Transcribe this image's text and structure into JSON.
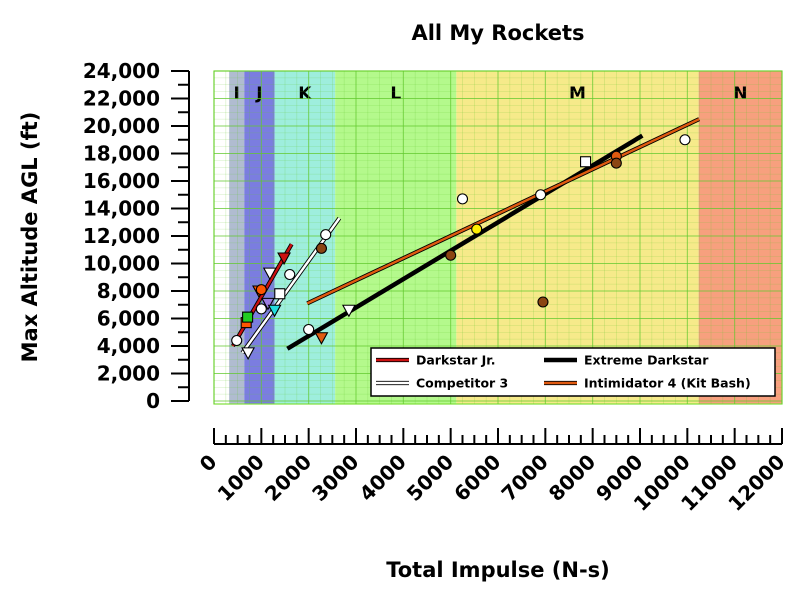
{
  "chart_data": {
    "type": "scatter",
    "title": "All My Rockets",
    "xlabel": "Total Impulse (N-s)",
    "ylabel": "Max Altitude AGL (ft)",
    "xlim": [
      0,
      12000
    ],
    "ylim": [
      0,
      24000
    ],
    "x_ticks": [
      0,
      1000,
      2000,
      3000,
      4000,
      5000,
      6000,
      7000,
      8000,
      9000,
      10000,
      11000,
      12000
    ],
    "y_ticks": [
      0,
      2000,
      4000,
      6000,
      8000,
      10000,
      12000,
      14000,
      16000,
      18000,
      20000,
      22000,
      24000
    ],
    "y_tick_labels": [
      "0",
      "2,000",
      "4,000",
      "6,000",
      "8,000",
      "10,000",
      "12,000",
      "14,000",
      "16,000",
      "18,000",
      "20,000",
      "22,000",
      "24,000"
    ],
    "grid": true,
    "legend_position": "lower-right",
    "impulse_classes": [
      {
        "label": "I",
        "x0": 320,
        "x1": 640,
        "color": "#b0bcd0"
      },
      {
        "label": "J",
        "x0": 640,
        "x1": 1280,
        "color": "#7b7de0"
      },
      {
        "label": "K",
        "x0": 1280,
        "x1": 2560,
        "color": "#9eeedd"
      },
      {
        "label": "L",
        "x0": 2560,
        "x1": 5120,
        "color": "#b4f98c"
      },
      {
        "label": "M",
        "x0": 5120,
        "x1": 10240,
        "color": "#f6ea8a"
      },
      {
        "label": "N",
        "x0": 10240,
        "x1": 12000,
        "color": "#f7a07e"
      }
    ],
    "lines": [
      {
        "name": "Darkstar Jr.",
        "color": "#cc1111",
        "x": [
          400,
          1640
        ],
        "y": [
          4000,
          11400
        ]
      },
      {
        "name": "Competitor 3",
        "color": "#ffffff",
        "x": [
          600,
          2650
        ],
        "y": [
          3500,
          13300
        ]
      },
      {
        "name": "Extreme Darkstar",
        "color": "#000000",
        "x": [
          1550,
          9050
        ],
        "y": [
          3800,
          19300
        ]
      },
      {
        "name": "Intimidator 4 (Kit Bash)",
        "color": "#e05a10",
        "x": [
          1970,
          10250
        ],
        "y": [
          7100,
          20500
        ]
      }
    ],
    "points": [
      {
        "x": 480,
        "y": 4400,
        "shape": "circle",
        "color": "#ffffff"
      },
      {
        "x": 680,
        "y": 5700,
        "shape": "square",
        "color": "#ff5500"
      },
      {
        "x": 710,
        "y": 6100,
        "shape": "square",
        "color": "#22cc22"
      },
      {
        "x": 720,
        "y": 3500,
        "shape": "triangle",
        "color": "#ffffff"
      },
      {
        "x": 950,
        "y": 8000,
        "shape": "triangle",
        "color": "#ff5500"
      },
      {
        "x": 1000,
        "y": 6700,
        "shape": "circle",
        "color": "#ffffff"
      },
      {
        "x": 1000,
        "y": 8100,
        "shape": "circle",
        "color": "#ff5500"
      },
      {
        "x": 1140,
        "y": 7100,
        "shape": "triangle",
        "color": "#9b7ee0"
      },
      {
        "x": 1180,
        "y": 9300,
        "shape": "triangle",
        "color": "#ffffff"
      },
      {
        "x": 1280,
        "y": 6600,
        "shape": "triangle",
        "color": "#22dddd"
      },
      {
        "x": 1390,
        "y": 7800,
        "shape": "square",
        "color": "#ffffff"
      },
      {
        "x": 1480,
        "y": 10400,
        "shape": "triangle",
        "color": "#cc1111"
      },
      {
        "x": 1600,
        "y": 9200,
        "shape": "circle",
        "color": "#ffffff"
      },
      {
        "x": 2000,
        "y": 5200,
        "shape": "circle",
        "color": "#ffffff"
      },
      {
        "x": 2270,
        "y": 4600,
        "shape": "triangle",
        "color": "#e05a10"
      },
      {
        "x": 2270,
        "y": 11100,
        "shape": "circle",
        "color": "#8b4513"
      },
      {
        "x": 2360,
        "y": 12100,
        "shape": "circle",
        "color": "#ffffff"
      },
      {
        "x": 2850,
        "y": 6600,
        "shape": "triangle",
        "color": "#ffffff"
      },
      {
        "x": 5000,
        "y": 10600,
        "shape": "circle",
        "color": "#8b4513"
      },
      {
        "x": 5250,
        "y": 14700,
        "shape": "circle",
        "color": "#ffffff"
      },
      {
        "x": 5550,
        "y": 12500,
        "shape": "circle",
        "color": "#ffee00"
      },
      {
        "x": 6900,
        "y": 15000,
        "shape": "circle",
        "color": "#ffffff"
      },
      {
        "x": 6950,
        "y": 7200,
        "shape": "circle",
        "color": "#8b4513"
      },
      {
        "x": 7850,
        "y": 17400,
        "shape": "square",
        "color": "#ffffff"
      },
      {
        "x": 8500,
        "y": 17800,
        "shape": "circle",
        "color": "#e05a10"
      },
      {
        "x": 8500,
        "y": 17300,
        "shape": "circle",
        "color": "#8b4513"
      },
      {
        "x": 9950,
        "y": 19000,
        "shape": "circle",
        "color": "#ffffff"
      }
    ],
    "legend": [
      "Darkstar Jr.",
      "Extreme Darkstar",
      "Competitor 3",
      "Intimidator 4 (Kit Bash)"
    ]
  }
}
